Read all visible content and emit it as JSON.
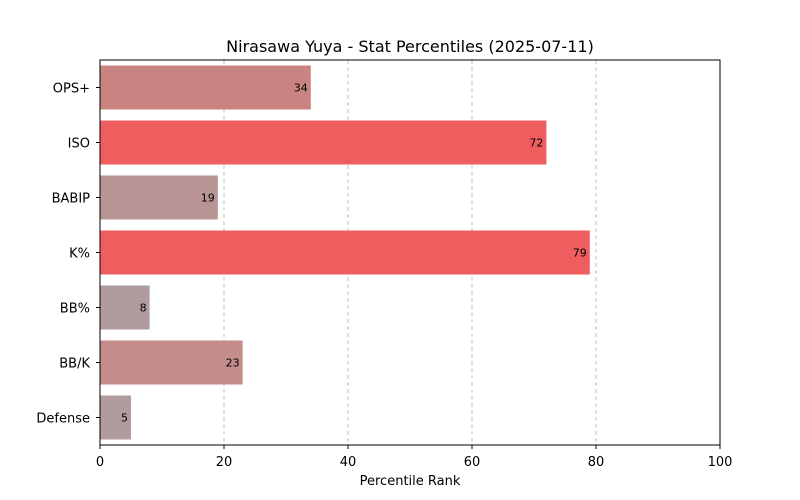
{
  "chart_data": {
    "type": "bar",
    "orientation": "horizontal",
    "title": "Nirasawa Yuya - Stat Percentiles (2025-07-11)",
    "xlabel": "Percentile Rank",
    "ylabel": "",
    "xlim": [
      0,
      100
    ],
    "xticks": [
      0,
      20,
      40,
      60,
      80,
      100
    ],
    "grid": "x-dashed",
    "categories": [
      "OPS+",
      "ISO",
      "BABIP",
      "K%",
      "BB%",
      "BB/K",
      "Defense"
    ],
    "values": [
      34,
      72,
      19,
      79,
      8,
      23,
      5
    ],
    "colors": [
      "#c98380",
      "#ee5e5f",
      "#b89594",
      "#ee5e5f",
      "#b09c9c",
      "#c48c8a",
      "#b09c9c"
    ]
  }
}
